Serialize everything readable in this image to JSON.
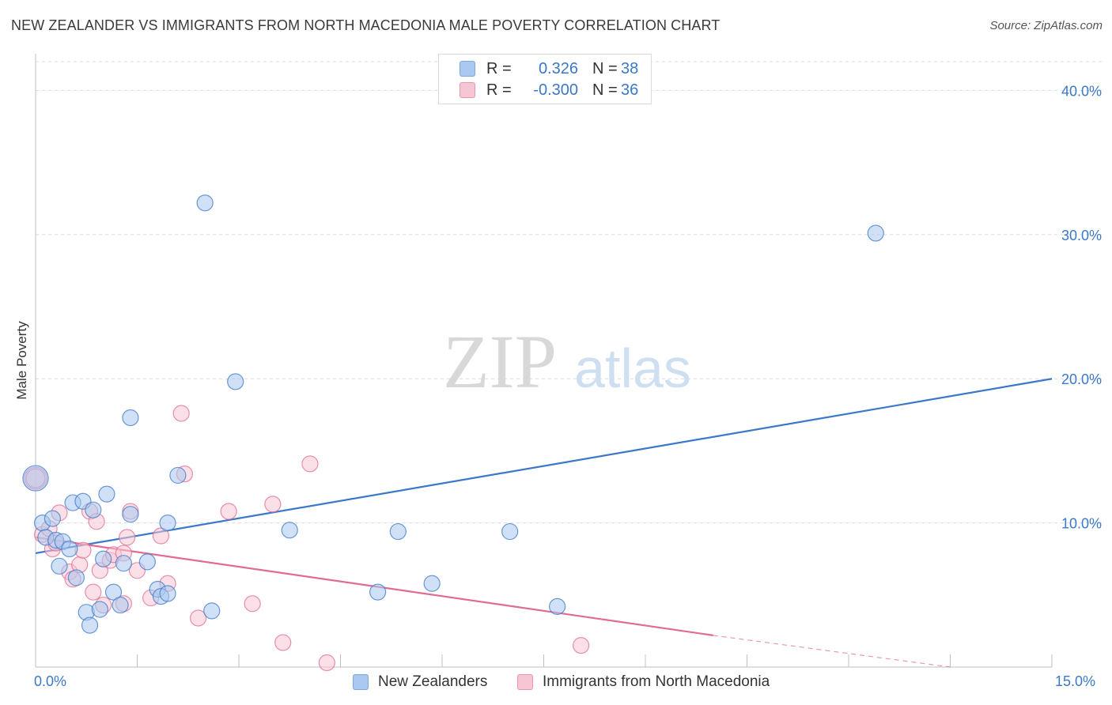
{
  "title": "NEW ZEALANDER VS IMMIGRANTS FROM NORTH MACEDONIA MALE POVERTY CORRELATION CHART",
  "source": "Source: ZipAtlas.com",
  "watermark": {
    "zip": "ZIP",
    "atlas": "atlas"
  },
  "legend": {
    "rows": [
      {
        "r_label": "R =",
        "r_value": "0.326",
        "n_label": "N =",
        "n_value": "38",
        "color": "#aac8f0",
        "border": "#7ea8dc"
      },
      {
        "r_label": "R =",
        "r_value": "-0.300",
        "n_label": "N =",
        "n_value": "36",
        "color": "#f7c6d4",
        "border": "#e896ad"
      }
    ]
  },
  "bottom_legend": {
    "items": [
      {
        "label": "New Zealanders",
        "color": "#aac8f0",
        "border": "#7ea8dc"
      },
      {
        "label": "Immigrants from North Macedonia",
        "color": "#f7c6d4",
        "border": "#e896ad"
      }
    ]
  },
  "chart_data": {
    "type": "scatter",
    "title": "NEW ZEALANDER VS IMMIGRANTS FROM NORTH MACEDONIA MALE POVERTY CORRELATION CHART",
    "xlabel": "",
    "ylabel": "Male Poverty",
    "xlim": [
      0,
      15
    ],
    "ylim": [
      0,
      42
    ],
    "x_tick_labels": [
      "0.0%",
      "15.0%"
    ],
    "y_ticks": [
      10,
      20,
      30,
      40
    ],
    "y_tick_labels": [
      "10.0%",
      "20.0%",
      "30.0%",
      "40.0%"
    ],
    "grid": true,
    "legend_position": "top-center",
    "series": [
      {
        "name": "New Zealanders",
        "color": "#3b78c8",
        "fill": "#aac8f0",
        "trend": {
          "x": [
            0,
            15
          ],
          "y": [
            7.9,
            20.0
          ],
          "style": "solid"
        },
        "points": [
          [
            0.0,
            13.1,
            16
          ],
          [
            0.1,
            10.0,
            10
          ],
          [
            0.15,
            9.0,
            10
          ],
          [
            0.25,
            10.3,
            10
          ],
          [
            0.3,
            8.8,
            10
          ],
          [
            0.35,
            7.0,
            10
          ],
          [
            0.4,
            8.7,
            10
          ],
          [
            0.5,
            8.2,
            10
          ],
          [
            0.55,
            11.4,
            10
          ],
          [
            0.6,
            6.2,
            10
          ],
          [
            0.7,
            11.5,
            10
          ],
          [
            0.75,
            3.8,
            10
          ],
          [
            0.8,
            2.9,
            10
          ],
          [
            0.85,
            10.9,
            10
          ],
          [
            0.95,
            4.0,
            10
          ],
          [
            1.0,
            7.5,
            10
          ],
          [
            1.05,
            12.0,
            10
          ],
          [
            1.15,
            5.2,
            10
          ],
          [
            1.25,
            4.3,
            10
          ],
          [
            1.3,
            7.2,
            10
          ],
          [
            1.4,
            17.3,
            10
          ],
          [
            1.4,
            10.6,
            10
          ],
          [
            1.65,
            7.3,
            10
          ],
          [
            1.8,
            5.4,
            10
          ],
          [
            1.85,
            4.9,
            10
          ],
          [
            1.95,
            5.1,
            10
          ],
          [
            1.95,
            10.0,
            10
          ],
          [
            2.1,
            13.3,
            10
          ],
          [
            2.5,
            32.2,
            10
          ],
          [
            2.6,
            3.9,
            10
          ],
          [
            2.95,
            19.8,
            10
          ],
          [
            3.75,
            9.5,
            10
          ],
          [
            5.05,
            5.2,
            10
          ],
          [
            5.35,
            9.4,
            10
          ],
          [
            5.85,
            5.8,
            10
          ],
          [
            7.0,
            9.4,
            10
          ],
          [
            7.7,
            4.2,
            10
          ],
          [
            12.4,
            30.1,
            10
          ]
        ]
      },
      {
        "name": "Immigrants from North Macedonia",
        "color": "#e06c94",
        "fill": "#f7c6d4",
        "trend": {
          "x": [
            0,
            10.0
          ],
          "y": [
            9.0,
            2.2
          ],
          "style": "solid",
          "extend_to_x": 13.5,
          "extend_y": 0.0
        },
        "points": [
          [
            0.0,
            13.1,
            14
          ],
          [
            0.1,
            9.2,
            10
          ],
          [
            0.2,
            9.6,
            10
          ],
          [
            0.25,
            8.2,
            10
          ],
          [
            0.3,
            8.6,
            10
          ],
          [
            0.35,
            10.7,
            10
          ],
          [
            0.5,
            6.6,
            10
          ],
          [
            0.55,
            6.1,
            10
          ],
          [
            0.65,
            7.1,
            10
          ],
          [
            0.7,
            8.1,
            10
          ],
          [
            0.8,
            10.8,
            10
          ],
          [
            0.85,
            5.2,
            10
          ],
          [
            0.9,
            10.1,
            10
          ],
          [
            0.95,
            6.7,
            10
          ],
          [
            1.0,
            4.3,
            10
          ],
          [
            1.1,
            7.4,
            10
          ],
          [
            1.15,
            7.8,
            10
          ],
          [
            1.3,
            4.4,
            10
          ],
          [
            1.3,
            7.9,
            10
          ],
          [
            1.35,
            9.0,
            10
          ],
          [
            1.4,
            10.8,
            10
          ],
          [
            1.5,
            6.7,
            10
          ],
          [
            1.7,
            4.8,
            10
          ],
          [
            1.85,
            9.1,
            10
          ],
          [
            1.95,
            5.8,
            10
          ],
          [
            2.15,
            17.6,
            10
          ],
          [
            2.2,
            13.4,
            10
          ],
          [
            2.4,
            3.4,
            10
          ],
          [
            2.85,
            10.8,
            10
          ],
          [
            3.2,
            4.4,
            10
          ],
          [
            3.5,
            11.3,
            10
          ],
          [
            3.65,
            1.7,
            10
          ],
          [
            4.05,
            14.1,
            10
          ],
          [
            4.3,
            0.3,
            10
          ],
          [
            8.05,
            1.5,
            10
          ],
          [
            0.0,
            13.1,
            12
          ]
        ]
      }
    ]
  }
}
